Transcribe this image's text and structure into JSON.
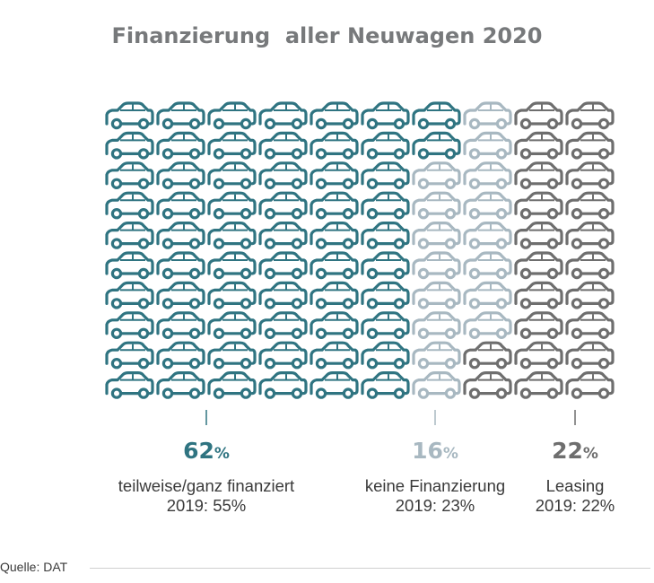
{
  "title": "Finanzierung  aller Neuwagen 2020",
  "source": "Quelle: DAT",
  "chart_data": {
    "type": "pictogram",
    "title": "Finanzierung  aller Neuwagen 2020",
    "total_icons": 100,
    "rows": 10,
    "columns": 10,
    "categories": [
      {
        "name": "teilweise/ganz finanziert",
        "value": 62,
        "value_text": "62",
        "unit": "%",
        "previous": "2019: 55%",
        "color": "#2f7481"
      },
      {
        "name": "keine Finanzierung",
        "value": 16,
        "value_text": "16",
        "unit": "%",
        "previous": "2019: 23%",
        "color": "#a8b8c1"
      },
      {
        "name": "Leasing",
        "value": 22,
        "value_text": "22",
        "unit": "%",
        "previous": "2019: 22%",
        "color": "#6e6e6e"
      }
    ]
  }
}
